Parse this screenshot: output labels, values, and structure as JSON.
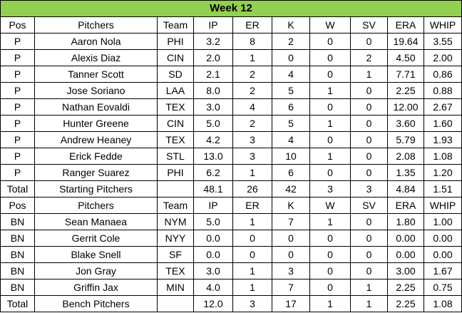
{
  "title": "Week 12",
  "colors": {
    "title_bg": "#92d050",
    "border": "#000000"
  },
  "headers": [
    "Pos",
    "Pitchers",
    "Team",
    "IP",
    "ER",
    "K",
    "W",
    "SV",
    "ERA",
    "WHIP"
  ],
  "starting": {
    "rows": [
      [
        "P",
        "Aaron Nola",
        "PHI",
        "3.2",
        "8",
        "2",
        "0",
        "0",
        "19.64",
        "3.55"
      ],
      [
        "P",
        "Alexis Diaz",
        "CIN",
        "2.0",
        "1",
        "0",
        "0",
        "2",
        "4.50",
        "2.00"
      ],
      [
        "P",
        "Tanner Scott",
        "SD",
        "2.1",
        "2",
        "4",
        "0",
        "1",
        "7.71",
        "0.86"
      ],
      [
        "P",
        "Jose Soriano",
        "LAA",
        "8.0",
        "2",
        "5",
        "1",
        "0",
        "2.25",
        "0.88"
      ],
      [
        "P",
        "Nathan Eovaldi",
        "TEX",
        "3.0",
        "4",
        "6",
        "0",
        "0",
        "12.00",
        "2.67"
      ],
      [
        "P",
        "Hunter Greene",
        "CIN",
        "5.0",
        "2",
        "5",
        "1",
        "0",
        "3.60",
        "1.60"
      ],
      [
        "P",
        "Andrew Heaney",
        "TEX",
        "4.2",
        "3",
        "4",
        "0",
        "0",
        "5.79",
        "1.93"
      ],
      [
        "P",
        "Erick Fedde",
        "STL",
        "13.0",
        "3",
        "10",
        "1",
        "0",
        "2.08",
        "1.08"
      ],
      [
        "P",
        "Ranger Suarez",
        "PHI",
        "6.2",
        "1",
        "6",
        "0",
        "0",
        "1.35",
        "1.20"
      ]
    ],
    "total": [
      "Total",
      "Starting Pitchers",
      "",
      "48.1",
      "26",
      "42",
      "3",
      "3",
      "4.84",
      "1.51"
    ]
  },
  "bench": {
    "rows": [
      [
        "BN",
        "Sean Manaea",
        "NYM",
        "5.0",
        "1",
        "7",
        "1",
        "0",
        "1.80",
        "1.00"
      ],
      [
        "BN",
        "Gerrit Cole",
        "NYY",
        "0.0",
        "0",
        "0",
        "0",
        "0",
        "0.00",
        "0.00"
      ],
      [
        "BN",
        "Blake Snell",
        "SF",
        "0.0",
        "0",
        "0",
        "0",
        "0",
        "0.00",
        "0.00"
      ],
      [
        "BN",
        "Jon Gray",
        "TEX",
        "3.0",
        "1",
        "3",
        "0",
        "0",
        "3.00",
        "1.67"
      ],
      [
        "BN",
        "Griffin Jax",
        "MIN",
        "4.0",
        "1",
        "7",
        "0",
        "1",
        "2.25",
        "0.75"
      ]
    ],
    "total": [
      "Total",
      "Bench Pitchers",
      "",
      "12.0",
      "3",
      "17",
      "1",
      "1",
      "2.25",
      "1.08"
    ]
  }
}
